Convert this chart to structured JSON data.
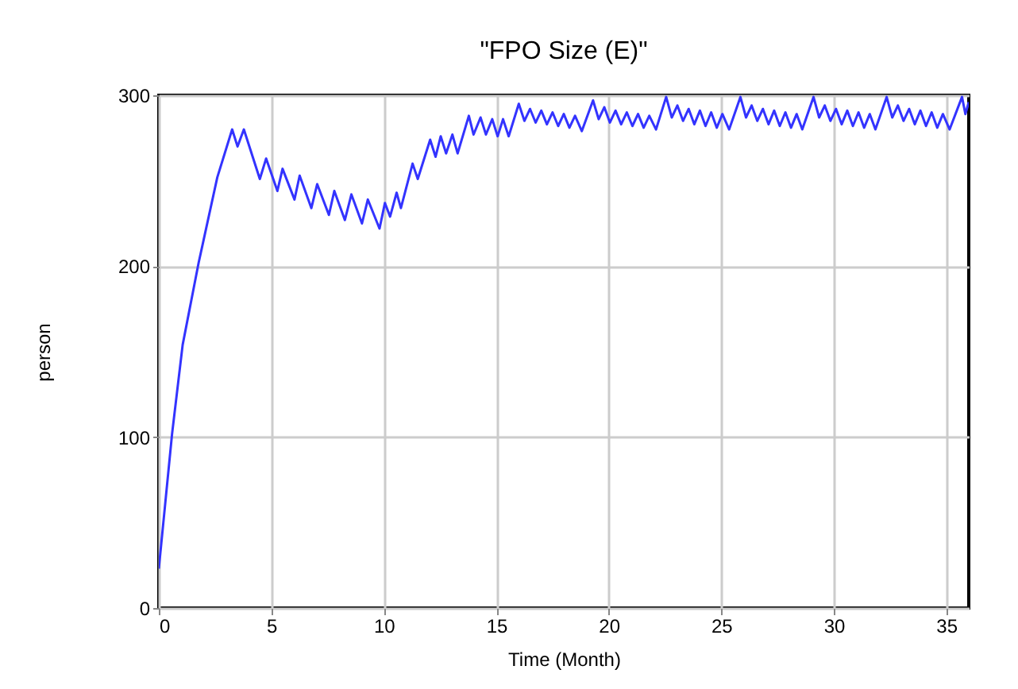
{
  "chart_data": {
    "type": "line",
    "title": "\"FPO Size (E)\"",
    "xlabel": "Time (Month)",
    "ylabel": "person",
    "xlim": [
      0,
      36
    ],
    "xticks": [
      0,
      5,
      10,
      15,
      20,
      25,
      30,
      35
    ],
    "ylim": [
      0,
      300
    ],
    "yticks": [
      0,
      100,
      200,
      300
    ],
    "grid": true,
    "x": [
      0,
      0.59,
      1.06,
      1.77,
      2.6,
      3.26,
      3.5,
      3.78,
      4.49,
      4.77,
      5.27,
      5.5,
      6.03,
      6.26,
      6.78,
      7.04,
      7.56,
      7.8,
      8.27,
      8.56,
      9.03,
      9.29,
      9.81,
      10.05,
      10.28,
      10.57,
      10.76,
      11.28,
      11.51,
      12.06,
      12.3,
      12.53,
      12.77,
      13.05,
      13.28,
      13.78,
      13.99,
      14.3,
      14.54,
      14.82,
      15.06,
      15.3,
      15.55,
      16.0,
      16.25,
      16.5,
      16.75,
      17.0,
      17.25,
      17.5,
      17.75,
      18.0,
      18.25,
      18.5,
      18.8,
      19.3,
      19.55,
      19.8,
      20.05,
      20.3,
      20.55,
      20.8,
      21.05,
      21.3,
      21.55,
      21.8,
      22.1,
      22.55,
      22.8,
      23.05,
      23.3,
      23.55,
      23.8,
      24.05,
      24.3,
      24.55,
      24.8,
      25.05,
      25.35,
      25.85,
      26.1,
      26.35,
      26.6,
      26.85,
      27.1,
      27.35,
      27.6,
      27.85,
      28.1,
      28.35,
      28.6,
      29.1,
      29.35,
      29.6,
      29.85,
      30.1,
      30.35,
      30.6,
      30.85,
      31.1,
      31.35,
      31.6,
      31.85,
      32.35,
      32.6,
      32.85,
      33.1,
      33.35,
      33.6,
      33.85,
      34.1,
      34.35,
      34.6,
      34.85,
      35.15,
      35.7,
      35.85,
      36
    ],
    "series": [
      {
        "color": "#3333ff",
        "values": [
          23,
          102,
          154,
          202,
          252,
          280,
          270,
          280,
          251,
          263,
          244,
          257,
          239,
          253,
          234,
          248,
          230,
          244,
          227,
          242,
          225,
          239,
          222,
          237,
          229,
          243,
          234,
          260,
          251,
          274,
          264,
          276,
          266,
          277,
          266,
          288,
          277,
          287,
          277,
          286,
          276,
          286,
          276,
          295,
          285,
          292,
          284,
          291,
          283,
          290,
          282,
          289,
          281,
          288,
          279,
          297,
          286,
          293,
          284,
          291,
          283,
          290,
          282,
          289,
          281,
          288,
          280,
          299,
          287,
          294,
          285,
          292,
          283,
          291,
          282,
          290,
          281,
          289,
          280,
          299,
          287,
          294,
          285,
          292,
          283,
          291,
          282,
          290,
          281,
          289,
          280,
          299,
          287,
          294,
          285,
          292,
          283,
          291,
          282,
          290,
          281,
          289,
          280,
          299,
          287,
          294,
          285,
          292,
          283,
          291,
          282,
          290,
          281,
          289,
          280,
          299,
          289,
          296
        ]
      }
    ]
  }
}
